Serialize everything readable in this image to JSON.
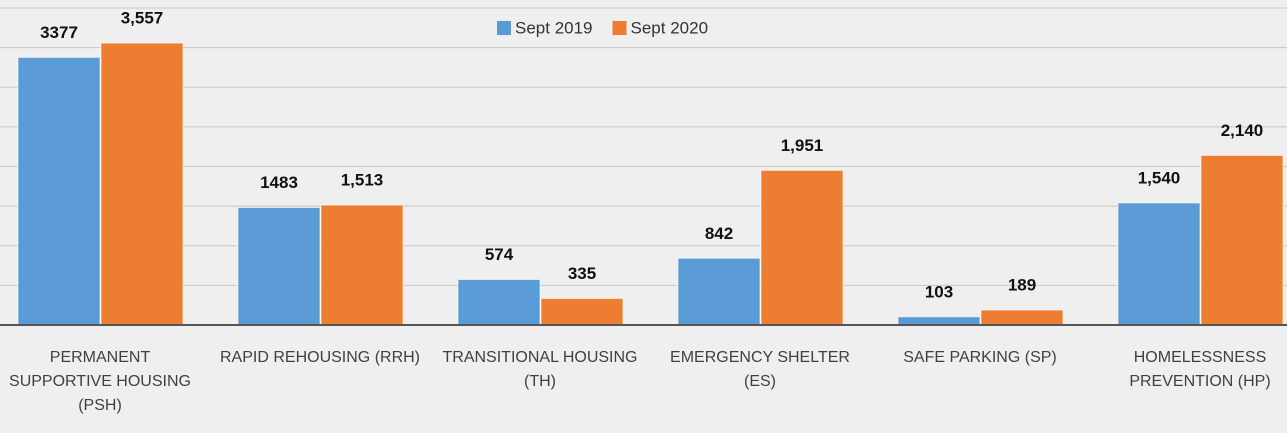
{
  "chart_data": {
    "type": "bar",
    "categories": [
      "PERMANENT SUPPORTIVE HOUSING (PSH)",
      "RAPID REHOUSING (RRH)",
      "TRANSITIONAL HOUSING (TH)",
      "EMERGENCY SHELTER (ES)",
      "SAFE PARKING (SP)",
      "HOMELESSNESS PREVENTION (HP)"
    ],
    "series": [
      {
        "name": "Sept 2019",
        "color": "#5b9bd5",
        "values": [
          3377,
          1483,
          574,
          842,
          103,
          1540
        ],
        "value_labels": [
          "3377",
          "1483",
          "574",
          "842",
          "103",
          "1,540"
        ]
      },
      {
        "name": "Sept 2020",
        "color": "#ed7d31",
        "values": [
          3557,
          1513,
          335,
          1951,
          189,
          2140
        ],
        "value_labels": [
          "3,557",
          "1,513",
          "335",
          "1,951",
          "189",
          "2,140"
        ]
      }
    ],
    "ylim": [
      0,
      4000
    ],
    "yticks": [
      0,
      500,
      1000,
      1500,
      2000,
      2500,
      3000,
      3500,
      4000
    ],
    "grid": true,
    "legend": "top"
  }
}
